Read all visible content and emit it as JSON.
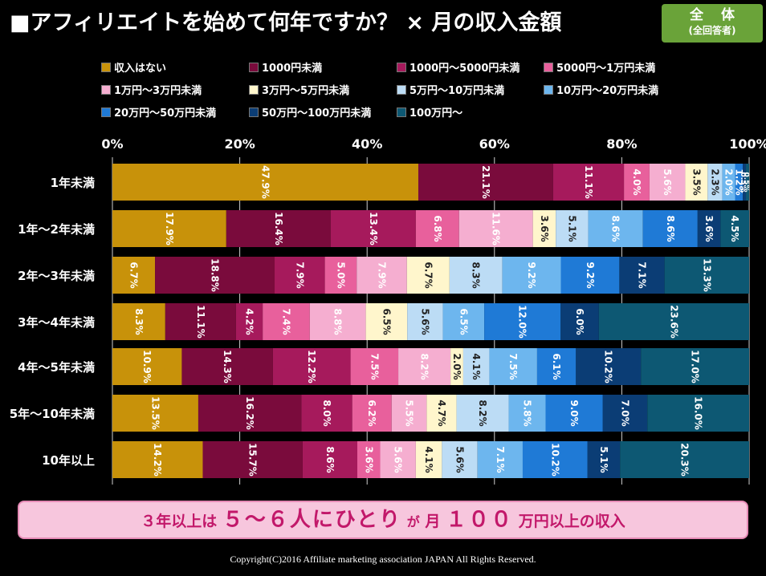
{
  "header": {
    "title": "■アフィリエイトを始めて何年ですか？ × 月の収入金額",
    "badge_main": "全 体",
    "badge_sub": "(全回答者)"
  },
  "note": {
    "p1": "３年以上は",
    "p2": "５～６人にひとり",
    "p3": "が",
    "p4": "月",
    "p5": "１００",
    "p6": "万円以上の収入"
  },
  "copyright": "Copyright(C)2016  Affiliate marketing  association JAPAN  All Rights Reserved.",
  "chart_data": {
    "type": "bar",
    "orientation": "horizontal",
    "stacked": "100%",
    "xlim": [
      0,
      100
    ],
    "ticks": [
      "0%",
      "20%",
      "40%",
      "60%",
      "80%",
      "100%"
    ],
    "legend_position": "top",
    "categories": [
      "1年未満",
      "1年～2年未満",
      "2年～3年未満",
      "3年～4年未満",
      "4年～5年未満",
      "5年～10年未満",
      "10年以上"
    ],
    "series": [
      {
        "name": "収入はない",
        "color": "#c8920a",
        "values": [
          47.9,
          17.9,
          6.7,
          8.3,
          10.9,
          13.5,
          14.2
        ],
        "labels": [
          "47.9%",
          "17.9%",
          "6.7%",
          "8.3%",
          "10.9%",
          "13.5%",
          "14.2%"
        ]
      },
      {
        "name": "1000円未満",
        "color": "#7a0b3c",
        "values": [
          21.1,
          16.4,
          18.8,
          11.1,
          14.3,
          16.2,
          15.7
        ],
        "labels": [
          "21.1%",
          "16.4%",
          "18.8%",
          "11.1%",
          "14.3%",
          "16.2%",
          "15.7%"
        ]
      },
      {
        "name": "1000円～5000円未満",
        "color": "#a61a5c",
        "values": [
          11.1,
          13.4,
          7.9,
          4.2,
          12.2,
          8.0,
          8.6
        ],
        "labels": [
          "11.1%",
          "13.4%",
          "7.9%",
          "4.2%",
          "12.2%",
          "8.0%",
          "8.6%"
        ]
      },
      {
        "name": "5000円～1万円未満",
        "color": "#e8609c",
        "values": [
          4.0,
          6.8,
          5.0,
          7.4,
          7.5,
          6.2,
          3.6
        ],
        "labels": [
          "4.0%",
          "6.8%",
          "5.0%",
          "7.4%",
          "7.5%",
          "6.2%",
          "3.6%"
        ]
      },
      {
        "name": "1万円～3万円未満",
        "color": "#f5aed0",
        "values": [
          5.6,
          11.6,
          7.9,
          8.8,
          8.2,
          5.5,
          5.6
        ],
        "labels": [
          "5.6%",
          "11.6%",
          "7.9%",
          "8.8%",
          "8.2%",
          "5.5%",
          "5.6%"
        ]
      },
      {
        "name": "3万円～5万円未満",
        "color": "#fff6cc",
        "values": [
          3.5,
          3.6,
          6.7,
          6.5,
          2.0,
          4.7,
          4.1
        ],
        "labels": [
          "3.5%",
          "3.6%",
          "6.7%",
          "6.5%",
          "2.0%",
          "4.7%",
          "4.1%"
        ]
      },
      {
        "name": "5万円～10万円未満",
        "color": "#bcdcf5",
        "values": [
          2.3,
          5.1,
          8.3,
          5.6,
          4.1,
          8.2,
          5.6
        ],
        "labels": [
          "2.3%",
          "5.1%",
          "8.3%",
          "5.6%",
          "4.1%",
          "8.2%",
          "5.6%"
        ]
      },
      {
        "name": "10万円～20万円未満",
        "color": "#6db6ee",
        "values": [
          2.0,
          8.6,
          9.2,
          6.5,
          7.5,
          5.8,
          7.1
        ],
        "labels": [
          "2.0%",
          "8.6%",
          "9.2%",
          "6.5%",
          "7.5%",
          "5.8%",
          "7.1%"
        ]
      },
      {
        "name": "20万円～50万円未満",
        "color": "#1f7ad6",
        "values": [
          1.2,
          8.6,
          9.2,
          12.0,
          6.1,
          9.0,
          10.2
        ],
        "labels": [
          "1.2%",
          "8.6%",
          "9.2%",
          "12.0%",
          "6.1%",
          "9.0%",
          "10.2%"
        ]
      },
      {
        "name": "50万円～100万円未満",
        "color": "#0b3d75",
        "values": [
          0.5,
          3.6,
          7.1,
          6.0,
          10.2,
          7.0,
          5.1
        ],
        "labels": [
          "0.5%",
          "3.6%",
          "7.1%",
          "6.0%",
          "10.2%",
          "7.0%",
          "5.1%"
        ]
      },
      {
        "name": "100万円～",
        "color": "#0d5873",
        "values": [
          0.5,
          4.5,
          13.3,
          23.6,
          17.0,
          16.0,
          20.3
        ],
        "labels": [
          "0.5%",
          "4.5%",
          "13.3%",
          "23.6%",
          "17.0%",
          "16.0%",
          "20.3%"
        ]
      }
    ]
  }
}
